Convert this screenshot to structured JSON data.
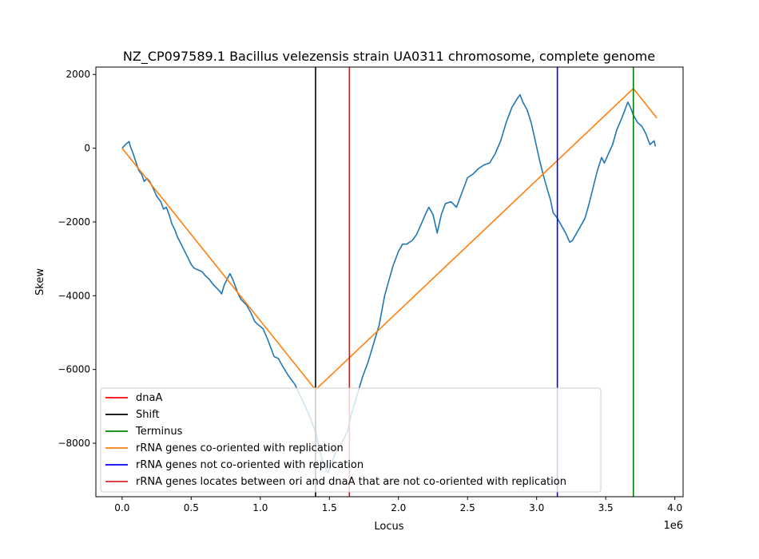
{
  "chart_data": {
    "type": "line",
    "title": "NZ_CP097589.1 Bacillus velezensis strain UA0311 chromosome, complete genome",
    "xlabel": "Locus",
    "ylabel": "Skew",
    "x_offset_label": "1e6",
    "xlim": [
      -0.19,
      4.06
    ],
    "ylim": [
      -9450,
      2200
    ],
    "x_ticks": [
      0.0,
      0.5,
      1.0,
      1.5,
      2.0,
      2.5,
      3.0,
      3.5,
      4.0
    ],
    "x_tick_labels": [
      "0.0",
      "0.5",
      "1.0",
      "1.5",
      "2.0",
      "2.5",
      "3.0",
      "3.5",
      "4.0"
    ],
    "y_ticks": [
      2000,
      0,
      -2000,
      -4000,
      -6000,
      -8000
    ],
    "y_tick_labels": [
      "2000",
      "0",
      "−2000",
      "−4000",
      "−6000",
      "−8000"
    ],
    "grid": false,
    "legend_position": "lower-left",
    "series": [
      {
        "color": "#1f77b4",
        "points": [
          [
            0.0,
            0
          ],
          [
            0.03,
            120
          ],
          [
            0.05,
            180
          ],
          [
            0.06,
            50
          ],
          [
            0.08,
            -150
          ],
          [
            0.1,
            -380
          ],
          [
            0.12,
            -600
          ],
          [
            0.14,
            -700
          ],
          [
            0.16,
            -900
          ],
          [
            0.18,
            -820
          ],
          [
            0.2,
            -900
          ],
          [
            0.22,
            -1050
          ],
          [
            0.25,
            -1300
          ],
          [
            0.28,
            -1450
          ],
          [
            0.3,
            -1650
          ],
          [
            0.32,
            -1600
          ],
          [
            0.34,
            -1800
          ],
          [
            0.36,
            -2050
          ],
          [
            0.38,
            -2200
          ],
          [
            0.4,
            -2400
          ],
          [
            0.42,
            -2550
          ],
          [
            0.44,
            -2700
          ],
          [
            0.46,
            -2850
          ],
          [
            0.48,
            -3000
          ],
          [
            0.5,
            -3150
          ],
          [
            0.52,
            -3250
          ],
          [
            0.55,
            -3300
          ],
          [
            0.58,
            -3350
          ],
          [
            0.6,
            -3450
          ],
          [
            0.63,
            -3550
          ],
          [
            0.66,
            -3700
          ],
          [
            0.7,
            -3850
          ],
          [
            0.72,
            -3950
          ],
          [
            0.74,
            -3700
          ],
          [
            0.76,
            -3550
          ],
          [
            0.78,
            -3400
          ],
          [
            0.8,
            -3550
          ],
          [
            0.82,
            -3750
          ],
          [
            0.84,
            -3950
          ],
          [
            0.86,
            -4100
          ],
          [
            0.9,
            -4250
          ],
          [
            0.93,
            -4450
          ],
          [
            0.96,
            -4700
          ],
          [
            0.99,
            -4800
          ],
          [
            1.02,
            -4900
          ],
          [
            1.05,
            -5150
          ],
          [
            1.08,
            -5450
          ],
          [
            1.1,
            -5650
          ],
          [
            1.13,
            -5700
          ],
          [
            1.16,
            -5900
          ],
          [
            1.2,
            -6150
          ],
          [
            1.25,
            -6400
          ],
          [
            1.3,
            -6800
          ],
          [
            1.35,
            -7200
          ],
          [
            1.4,
            -7700
          ],
          [
            1.43,
            -8200
          ],
          [
            1.46,
            -8600
          ],
          [
            1.49,
            -8800
          ],
          [
            1.52,
            -8500
          ],
          [
            1.55,
            -8200
          ],
          [
            1.58,
            -8050
          ],
          [
            1.6,
            -7900
          ],
          [
            1.63,
            -7700
          ],
          [
            1.66,
            -7200
          ],
          [
            1.7,
            -6700
          ],
          [
            1.74,
            -6200
          ],
          [
            1.78,
            -5800
          ],
          [
            1.82,
            -5300
          ],
          [
            1.86,
            -4800
          ],
          [
            1.88,
            -4400
          ],
          [
            1.9,
            -4000
          ],
          [
            1.93,
            -3600
          ],
          [
            1.96,
            -3200
          ],
          [
            2.0,
            -2800
          ],
          [
            2.03,
            -2600
          ],
          [
            2.06,
            -2600
          ],
          [
            2.1,
            -2500
          ],
          [
            2.13,
            -2350
          ],
          [
            2.16,
            -2100
          ],
          [
            2.2,
            -1750
          ],
          [
            2.22,
            -1600
          ],
          [
            2.25,
            -1800
          ],
          [
            2.28,
            -2300
          ],
          [
            2.31,
            -1800
          ],
          [
            2.34,
            -1500
          ],
          [
            2.38,
            -1450
          ],
          [
            2.42,
            -1600
          ],
          [
            2.46,
            -1200
          ],
          [
            2.5,
            -800
          ],
          [
            2.54,
            -700
          ],
          [
            2.58,
            -550
          ],
          [
            2.62,
            -450
          ],
          [
            2.66,
            -400
          ],
          [
            2.7,
            -150
          ],
          [
            2.74,
            200
          ],
          [
            2.78,
            700
          ],
          [
            2.82,
            1100
          ],
          [
            2.86,
            1350
          ],
          [
            2.88,
            1450
          ],
          [
            2.9,
            1250
          ],
          [
            2.93,
            1050
          ],
          [
            2.96,
            700
          ],
          [
            2.99,
            200
          ],
          [
            3.02,
            -300
          ],
          [
            3.05,
            -750
          ],
          [
            3.08,
            -1150
          ],
          [
            3.1,
            -1400
          ],
          [
            3.12,
            -1750
          ],
          [
            3.15,
            -1900
          ],
          [
            3.18,
            -2100
          ],
          [
            3.21,
            -2300
          ],
          [
            3.24,
            -2550
          ],
          [
            3.26,
            -2500
          ],
          [
            3.29,
            -2300
          ],
          [
            3.32,
            -2100
          ],
          [
            3.35,
            -1900
          ],
          [
            3.38,
            -1500
          ],
          [
            3.41,
            -1050
          ],
          [
            3.44,
            -600
          ],
          [
            3.47,
            -250
          ],
          [
            3.49,
            -400
          ],
          [
            3.52,
            -150
          ],
          [
            3.55,
            100
          ],
          [
            3.58,
            500
          ],
          [
            3.62,
            850
          ],
          [
            3.66,
            1250
          ],
          [
            3.68,
            1100
          ],
          [
            3.7,
            900
          ],
          [
            3.73,
            700
          ],
          [
            3.76,
            600
          ],
          [
            3.79,
            400
          ],
          [
            3.82,
            100
          ],
          [
            3.85,
            200
          ],
          [
            3.86,
            50
          ]
        ]
      },
      {
        "color": "#ff7f0e",
        "points": [
          [
            0.0,
            0
          ],
          [
            1.4,
            -6550
          ],
          [
            3.7,
            1620
          ],
          [
            3.87,
            820
          ]
        ]
      }
    ],
    "vlines": [
      {
        "x": 1.4,
        "color": "#000000"
      },
      {
        "x": 1.645,
        "color": "#ff0000"
      },
      {
        "x": 3.15,
        "color": "#0000ff"
      },
      {
        "x": 3.7,
        "color": "#008000"
      }
    ],
    "legend": [
      {
        "label": "dnaA",
        "color": "#ff0000"
      },
      {
        "label": "Shift",
        "color": "#000000"
      },
      {
        "label": "Terminus",
        "color": "#008000"
      },
      {
        "label": "rRNA genes co-oriented with replication",
        "color": "#ff7f0e"
      },
      {
        "label": "rRNA genes not co-oriented with replication",
        "color": "#0000ff"
      },
      {
        "label": "rRNA genes locates between ori and dnaA that are not co-oriented with replication",
        "color": "#d62728"
      }
    ]
  }
}
